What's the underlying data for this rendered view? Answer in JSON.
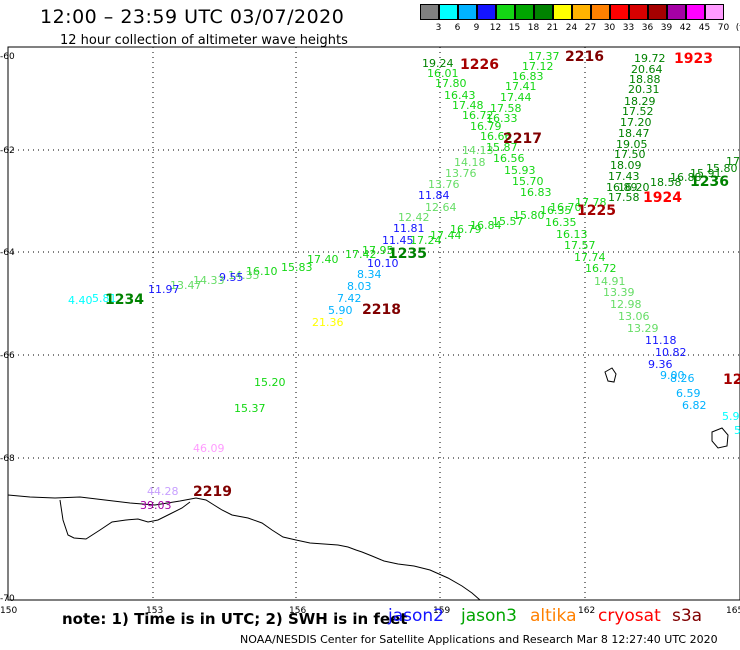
{
  "header": {
    "title": "12:00 – 23:59 UTC 03/07/2020",
    "subtitle": "12 hour collection of altimeter wave heights"
  },
  "scale": {
    "labels": [
      "3",
      "6",
      "9",
      "12",
      "15",
      "18",
      "21",
      "24",
      "27",
      "30",
      "33",
      "36",
      "39",
      "42",
      "45",
      "70",
      "(ft)"
    ],
    "colors": [
      "#808080",
      "#00ffff",
      "#00b2ff",
      "#1414ff",
      "#14d714",
      "#00a500",
      "#008200",
      "#ffff00",
      "#ffb300",
      "#ff8000",
      "#ff0000",
      "#d70000",
      "#a50000",
      "#a500a5",
      "#ff00ff",
      "#ff9bff"
    ]
  },
  "axes": {
    "lon_ticks": [
      "150",
      "153",
      "156",
      "159",
      "162",
      "165"
    ],
    "lat_ticks": [
      "-60",
      "-62",
      "-64",
      "-66",
      "-68",
      "-70"
    ]
  },
  "time_labels": [
    {
      "text": "1226",
      "color": "#a50000"
    },
    {
      "text": "2216",
      "color": "#800000"
    },
    {
      "text": "1923",
      "color": "#ff0000"
    },
    {
      "text": "2217",
      "color": "#800000"
    },
    {
      "text": "1236",
      "color": "#008200"
    },
    {
      "text": "1924",
      "color": "#ff0000"
    },
    {
      "text": "1225",
      "color": "#a50000"
    },
    {
      "text": "1235",
      "color": "#008200"
    },
    {
      "text": "2218",
      "color": "#800000"
    },
    {
      "text": "1234",
      "color": "#008200"
    },
    {
      "text": "12",
      "color": "#a50000"
    },
    {
      "text": "2219",
      "color": "#800000"
    }
  ],
  "wave_labels": [
    {
      "text": "17.37",
      "c": "#14d714"
    },
    {
      "text": "17.12",
      "c": "#14d714"
    },
    {
      "text": "16.83",
      "c": "#14d714"
    },
    {
      "text": "17.41",
      "c": "#14d714"
    },
    {
      "text": "17.44",
      "c": "#14d714"
    },
    {
      "text": "17.58",
      "c": "#14d714"
    },
    {
      "text": "16.33",
      "c": "#14d714"
    },
    {
      "text": "19.24",
      "c": "#008200"
    },
    {
      "text": "16.01",
      "c": "#14d714"
    },
    {
      "text": "17.80",
      "c": "#14d714"
    },
    {
      "text": "16.43",
      "c": "#14d714"
    },
    {
      "text": "17.48",
      "c": "#14d714"
    },
    {
      "text": "16.72",
      "c": "#14d714"
    },
    {
      "text": "16.79",
      "c": "#14d714"
    },
    {
      "text": "16.66",
      "c": "#14d714"
    },
    {
      "text": "14.13",
      "c": "#66dd66"
    },
    {
      "text": "15.87",
      "c": "#14d714"
    },
    {
      "text": "14.18",
      "c": "#66dd66"
    },
    {
      "text": "16.56",
      "c": "#14d714"
    },
    {
      "text": "15.93",
      "c": "#14d714"
    },
    {
      "text": "13.76",
      "c": "#66dd66"
    },
    {
      "text": "13.76",
      "c": "#66dd66"
    },
    {
      "text": "15.70",
      "c": "#14d714"
    },
    {
      "text": "16.83",
      "c": "#14d714"
    },
    {
      "text": "19.72",
      "c": "#008200"
    },
    {
      "text": "20.64",
      "c": "#008200"
    },
    {
      "text": "18.88",
      "c": "#008200"
    },
    {
      "text": "20.31",
      "c": "#008200"
    },
    {
      "text": "18.29",
      "c": "#008200"
    },
    {
      "text": "17.52",
      "c": "#008200"
    },
    {
      "text": "17.20",
      "c": "#008200"
    },
    {
      "text": "18.47",
      "c": "#008200"
    },
    {
      "text": "19.05",
      "c": "#008200"
    },
    {
      "text": "17.50",
      "c": "#008200"
    },
    {
      "text": "18.09",
      "c": "#008200"
    },
    {
      "text": "17.43",
      "c": "#008200"
    },
    {
      "text": "16.89",
      "c": "#008200"
    },
    {
      "text": "16.20",
      "c": "#008200"
    },
    {
      "text": "17.58",
      "c": "#008200"
    },
    {
      "text": "18.58",
      "c": "#008200"
    },
    {
      "text": "16.88",
      "c": "#008200"
    },
    {
      "text": "15.91",
      "c": "#008200"
    },
    {
      "text": "15.80",
      "c": "#008200"
    },
    {
      "text": "17",
      "c": "#008200"
    },
    {
      "text": "11.84",
      "c": "#1414ff"
    },
    {
      "text": "12.64",
      "c": "#66dd66"
    },
    {
      "text": "12.42",
      "c": "#66dd66"
    },
    {
      "text": "11.81",
      "c": "#1414ff"
    },
    {
      "text": "11.45",
      "c": "#1414ff"
    },
    {
      "text": "17.24",
      "c": "#14d714"
    },
    {
      "text": "17.44",
      "c": "#14d714"
    },
    {
      "text": "16.79",
      "c": "#14d714"
    },
    {
      "text": "16.84",
      "c": "#14d714"
    },
    {
      "text": "15.57",
      "c": "#14d714"
    },
    {
      "text": "15.80",
      "c": "#14d714"
    },
    {
      "text": "16.35",
      "c": "#14d714"
    },
    {
      "text": "16.70",
      "c": "#14d714"
    },
    {
      "text": "17.78",
      "c": "#14d714"
    },
    {
      "text": "16.35",
      "c": "#14d714"
    },
    {
      "text": "16.13",
      "c": "#14d714"
    },
    {
      "text": "17.57",
      "c": "#14d714"
    },
    {
      "text": "17.74",
      "c": "#14d714"
    },
    {
      "text": "16.72",
      "c": "#14d714"
    },
    {
      "text": "14.91",
      "c": "#66dd66"
    },
    {
      "text": "13.39",
      "c": "#66dd66"
    },
    {
      "text": "12.98",
      "c": "#66dd66"
    },
    {
      "text": "13.06",
      "c": "#66dd66"
    },
    {
      "text": "13.29",
      "c": "#66dd66"
    },
    {
      "text": "11.18",
      "c": "#1414ff"
    },
    {
      "text": "10.82",
      "c": "#1414ff"
    },
    {
      "text": "9.36",
      "c": "#1414ff"
    },
    {
      "text": "9.00",
      "c": "#00b2ff"
    },
    {
      "text": "8.26",
      "c": "#00b2ff"
    },
    {
      "text": "6.59",
      "c": "#00b2ff"
    },
    {
      "text": "6.82",
      "c": "#00b2ff"
    },
    {
      "text": "5.9",
      "c": "#00ffff"
    },
    {
      "text": "5",
      "c": "#00ffff"
    },
    {
      "text": "17.42",
      "c": "#14d714"
    },
    {
      "text": "17.95",
      "c": "#14d714"
    },
    {
      "text": "17.40",
      "c": "#14d714"
    },
    {
      "text": "15.83",
      "c": "#14d714"
    },
    {
      "text": "16.10",
      "c": "#14d714"
    },
    {
      "text": "14.35",
      "c": "#66dd66"
    },
    {
      "text": "9.55",
      "c": "#1414ff"
    },
    {
      "text": "14.33",
      "c": "#66dd66"
    },
    {
      "text": "13.47",
      "c": "#66dd66"
    },
    {
      "text": "11.97",
      "c": "#1414ff"
    },
    {
      "text": "10.10",
      "c": "#1414ff"
    },
    {
      "text": "8.34",
      "c": "#00b2ff"
    },
    {
      "text": "8.03",
      "c": "#00b2ff"
    },
    {
      "text": "7.42",
      "c": "#00b2ff"
    },
    {
      "text": "5.90",
      "c": "#00b2ff"
    },
    {
      "text": "21.36",
      "c": "#ffff00"
    },
    {
      "text": "4.40",
      "c": "#00ffff"
    },
    {
      "text": "5.81",
      "c": "#00ffff"
    },
    {
      "text": "15.20",
      "c": "#14d714"
    },
    {
      "text": "15.37",
      "c": "#14d714"
    },
    {
      "text": "46.09",
      "c": "#ff9bff"
    },
    {
      "text": "44.28",
      "c": "#c8a0ff"
    },
    {
      "text": "39.03",
      "c": "#a500a5"
    }
  ],
  "legend": {
    "note": "note:  1) Time is in UTC;  2) SWH is in feet",
    "satellites": [
      {
        "name": "jason2",
        "color": "#1414ff"
      },
      {
        "name": "jason3",
        "color": "#00a500"
      },
      {
        "name": "altika",
        "color": "#ff8000"
      },
      {
        "name": "cryosat",
        "color": "#ff0000"
      },
      {
        "name": "s3a",
        "color": "#800000"
      }
    ]
  },
  "credit": "NOAA/NESDIS Center for Satellite Applications and Research    Mar  8 12:27:40 UTC 2020"
}
